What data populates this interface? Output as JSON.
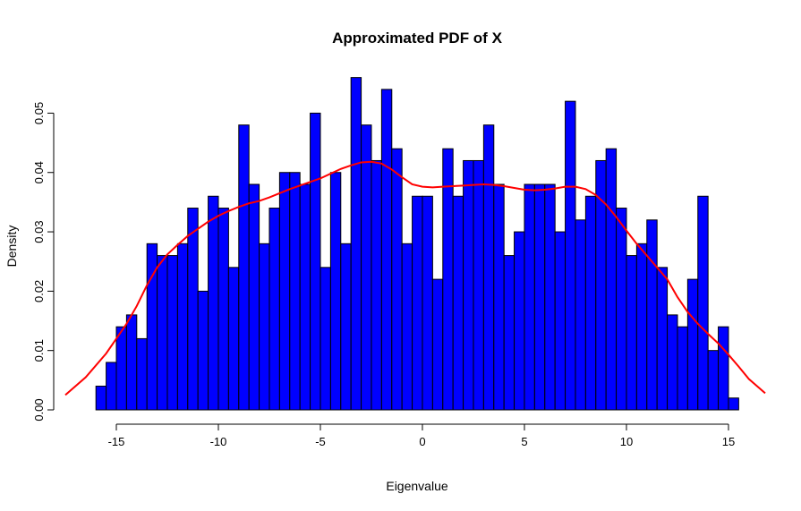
{
  "chart_data": {
    "type": "bar",
    "title": "Approximated PDF of X",
    "xlabel": "Eigenvalue",
    "ylabel": "Density",
    "xlim": [
      -17.5,
      16.8
    ],
    "ylim": [
      0,
      0.057
    ],
    "x_ticks": [
      -15,
      -10,
      -5,
      0,
      5,
      10,
      15
    ],
    "x_tick_labels": [
      "-15",
      "-10",
      "-5",
      "0",
      "5",
      "10",
      "15"
    ],
    "y_ticks": [
      0.0,
      0.01,
      0.02,
      0.03,
      0.04,
      0.05
    ],
    "y_tick_labels": [
      "0.00",
      "0.01",
      "0.02",
      "0.03",
      "0.04",
      "0.05"
    ],
    "bins": {
      "start": -16,
      "width": 0.5,
      "values": [
        0.004,
        0.008,
        0.014,
        0.016,
        0.012,
        0.028,
        0.026,
        0.026,
        0.028,
        0.034,
        0.02,
        0.036,
        0.034,
        0.024,
        0.048,
        0.038,
        0.028,
        0.034,
        0.04,
        0.04,
        0.038,
        0.05,
        0.024,
        0.04,
        0.028,
        0.056,
        0.048,
        0.042,
        0.054,
        0.044,
        0.028,
        0.036,
        0.036,
        0.022,
        0.044,
        0.036,
        0.042,
        0.042,
        0.048,
        0.038,
        0.026,
        0.03,
        0.038,
        0.038,
        0.038,
        0.03,
        0.052,
        0.032,
        0.036,
        0.042,
        0.044,
        0.034,
        0.026,
        0.028,
        0.032,
        0.024,
        0.016,
        0.014,
        0.022,
        0.036,
        0.01,
        0.014,
        0.002
      ]
    },
    "bar_color": "#0000ff",
    "density_curve": {
      "color": "#ff0000",
      "x": [
        -17.5,
        -16.5,
        -15.5,
        -14.5,
        -14,
        -13.5,
        -13,
        -12.5,
        -12,
        -11.5,
        -11,
        -10.5,
        -10,
        -9.5,
        -9,
        -8.5,
        -8,
        -7.5,
        -7,
        -6.5,
        -6,
        -5.5,
        -5,
        -4.5,
        -4,
        -3.5,
        -3,
        -2.5,
        -2,
        -1.5,
        -1,
        -0.5,
        0,
        0.5,
        1,
        1.5,
        2,
        2.5,
        3,
        3.5,
        4,
        4.5,
        5,
        5.5,
        6,
        6.5,
        7,
        7.5,
        8,
        8.5,
        9,
        9.5,
        10,
        10.5,
        11,
        11.5,
        12,
        12.5,
        13,
        13.5,
        14,
        14.5,
        15,
        15.5,
        16,
        16.8
      ],
      "y": [
        0.0025,
        0.0055,
        0.0095,
        0.0145,
        0.0175,
        0.021,
        0.024,
        0.0262,
        0.0278,
        0.0293,
        0.0305,
        0.0317,
        0.0327,
        0.0335,
        0.0342,
        0.0348,
        0.0352,
        0.0358,
        0.0365,
        0.0372,
        0.0378,
        0.0384,
        0.039,
        0.0398,
        0.0406,
        0.0412,
        0.0417,
        0.0418,
        0.0415,
        0.0405,
        0.0392,
        0.038,
        0.0376,
        0.0375,
        0.0376,
        0.0377,
        0.0378,
        0.0379,
        0.038,
        0.0379,
        0.0377,
        0.0374,
        0.0371,
        0.037,
        0.0371,
        0.0373,
        0.0376,
        0.0376,
        0.0372,
        0.0362,
        0.0346,
        0.0325,
        0.0302,
        0.028,
        0.026,
        0.024,
        0.022,
        0.019,
        0.0165,
        0.0145,
        0.0128,
        0.0112,
        0.0093,
        0.0073,
        0.0052,
        0.0028
      ]
    },
    "grid": false,
    "legend": "none"
  }
}
